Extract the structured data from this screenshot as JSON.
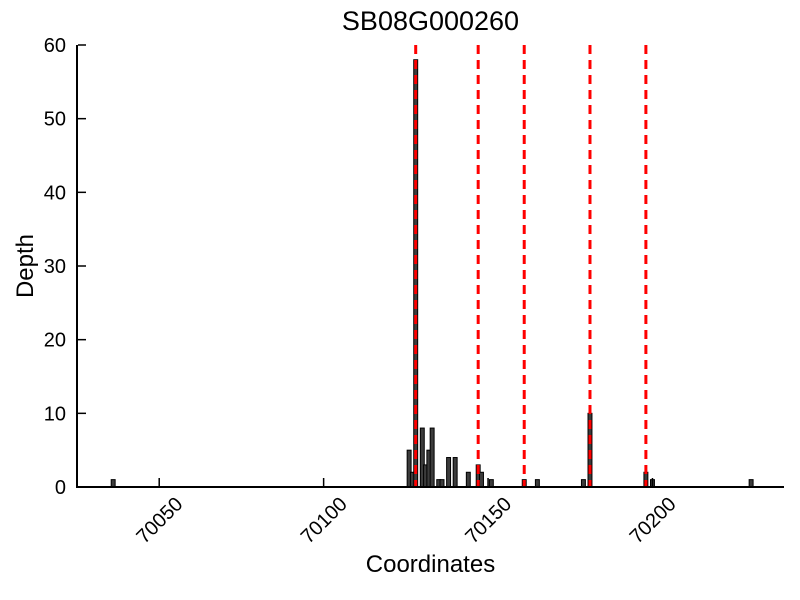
{
  "chart_data": {
    "type": "bar",
    "title": "SB08G000260",
    "xlabel": "Coordinates",
    "ylabel": "Depth",
    "xlim": [
      70025,
      70240
    ],
    "ylim": [
      0,
      60
    ],
    "xticks": [
      70050,
      70100,
      70150,
      70200
    ],
    "yticks": [
      0,
      10,
      20,
      30,
      40,
      50,
      60
    ],
    "grid": false,
    "legend": null,
    "x": [
      70036,
      70126,
      70127,
      70128,
      70130,
      70131,
      70132,
      70133,
      70135,
      70136,
      70138,
      70140,
      70144,
      70147,
      70148,
      70151,
      70161,
      70165,
      70179,
      70181,
      70198,
      70200,
      70230
    ],
    "values": [
      1,
      5,
      2,
      58,
      8,
      3,
      5,
      8,
      1,
      1,
      4,
      4,
      2,
      3,
      2,
      1,
      1,
      1,
      1,
      10,
      2,
      1,
      1
    ],
    "marker_lines": {
      "style": "dashed-vertical",
      "positions": [
        70128,
        70147,
        70161,
        70181,
        70198
      ]
    },
    "bar_width_units": 1.2,
    "colors": {
      "bar_fill": "#3c3c3c",
      "bar_edge": "#000000",
      "marker_line": "#ff0000",
      "axis": "#000000",
      "background": "#ffffff"
    }
  }
}
